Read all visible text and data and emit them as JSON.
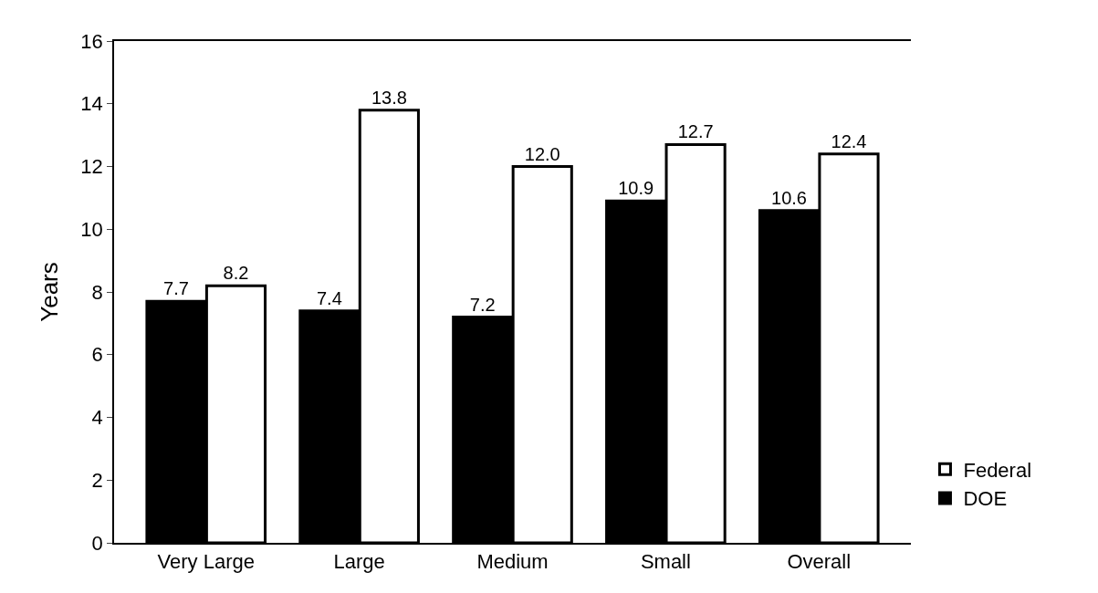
{
  "chart_data": {
    "type": "bar",
    "ylabel": "Years",
    "categories": [
      "Very Large",
      "Large",
      "Medium",
      "Small",
      "Overall"
    ],
    "series": [
      {
        "name": "DOE",
        "color": "#000000",
        "values": [
          7.7,
          7.4,
          7.2,
          10.9,
          10.6
        ],
        "value_labels": [
          "7.7",
          "7.4",
          "7.2",
          "10.9",
          "10.6"
        ]
      },
      {
        "name": "Federal",
        "color": "#ffffff",
        "values": [
          8.2,
          13.8,
          12.0,
          12.7,
          12.4
        ],
        "value_labels": [
          "8.2",
          "13.8",
          "12.0",
          "12.7",
          "12.4"
        ]
      }
    ],
    "ylim": [
      0,
      16
    ],
    "yticks": [
      0,
      2,
      4,
      6,
      8,
      10,
      12,
      14,
      16
    ],
    "grid": false,
    "legend": "right"
  }
}
